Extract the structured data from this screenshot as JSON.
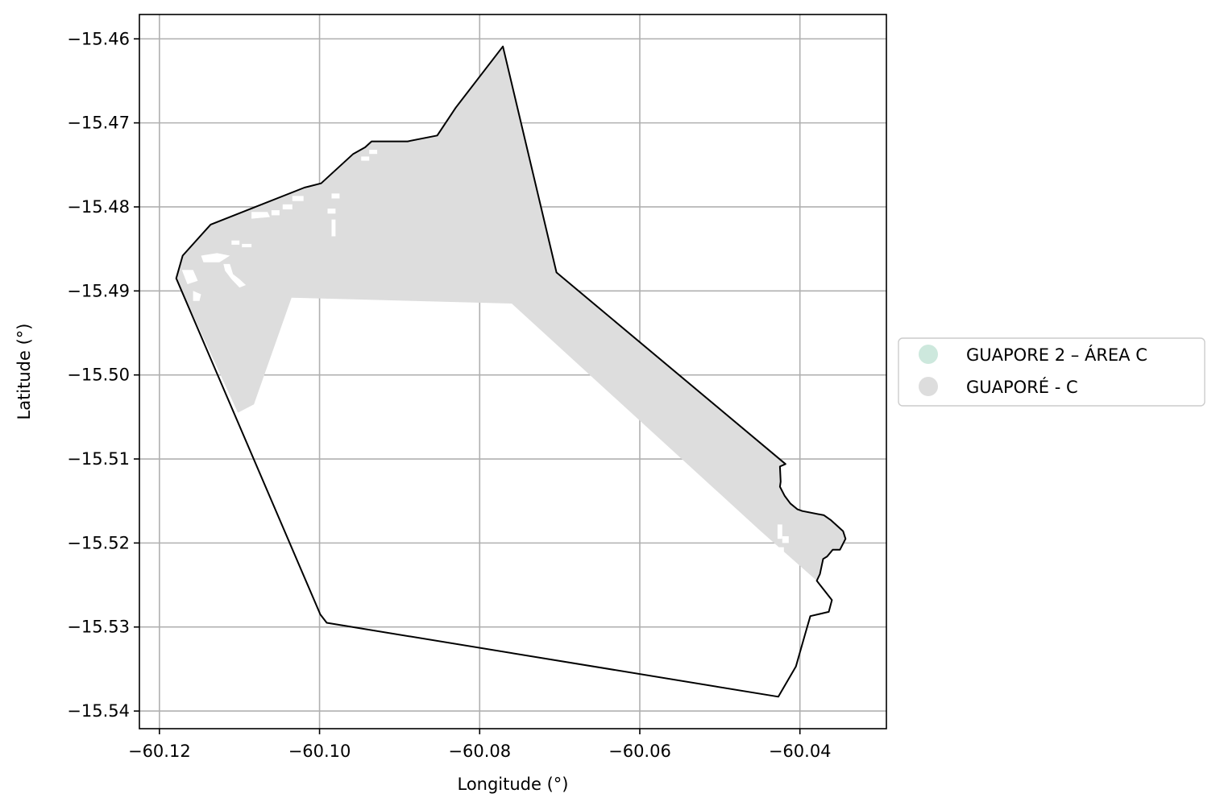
{
  "chart_data": {
    "type": "map",
    "xlabel": "Longitude (°)",
    "ylabel": "Latitude (°)",
    "xlim": [
      -60.1225,
      -60.0292
    ],
    "ylim": [
      -15.5421,
      -15.4571
    ],
    "grid": true,
    "x_ticks": [
      {
        "value": -60.12,
        "label": "−60.12"
      },
      {
        "value": -60.1,
        "label": "−60.10"
      },
      {
        "value": -60.08,
        "label": "−60.08"
      },
      {
        "value": -60.06,
        "label": "−60.06"
      },
      {
        "value": -60.04,
        "label": "−60.04"
      }
    ],
    "y_ticks": [
      {
        "value": -15.46,
        "label": "−15.46"
      },
      {
        "value": -15.47,
        "label": "−15.47"
      },
      {
        "value": -15.48,
        "label": "−15.48"
      },
      {
        "value": -15.49,
        "label": "−15.49"
      },
      {
        "value": -15.5,
        "label": "−15.50"
      },
      {
        "value": -15.51,
        "label": "−15.51"
      },
      {
        "value": -15.52,
        "label": "−15.52"
      },
      {
        "value": -15.53,
        "label": "−15.53"
      },
      {
        "value": -15.54,
        "label": "−15.54"
      }
    ],
    "legend": {
      "placement": "right",
      "entries": [
        {
          "label": "GUAPORE 2 – ÁREA C",
          "color": "#cde8dd"
        },
        {
          "label": "GUAPORÉ - C",
          "color": "#dddddd"
        }
      ]
    },
    "outline_polygon": [
      [
        -60.1171,
        -15.4858
      ],
      [
        -60.1136,
        -15.4821
      ],
      [
        -60.1019,
        -15.4777
      ],
      [
        -60.0998,
        -15.4772
      ],
      [
        -60.0958,
        -15.4737
      ],
      [
        -60.0943,
        -15.4729
      ],
      [
        -60.0935,
        -15.4722
      ],
      [
        -60.089,
        -15.4722
      ],
      [
        -60.0853,
        -15.4715
      ],
      [
        -60.083,
        -15.4682
      ],
      [
        -60.0771,
        -15.4609
      ],
      [
        -60.0704,
        -15.4878
      ],
      [
        -60.0418,
        -15.5106
      ],
      [
        -60.0425,
        -15.5109
      ],
      [
        -60.0424,
        -15.5127
      ],
      [
        -60.0425,
        -15.5133
      ],
      [
        -60.0419,
        -15.5144
      ],
      [
        -60.0412,
        -15.5153
      ],
      [
        -60.0403,
        -15.516
      ],
      [
        -60.0397,
        -15.5162
      ],
      [
        -60.037,
        -15.5167
      ],
      [
        -60.0361,
        -15.5173
      ],
      [
        -60.0346,
        -15.5186
      ],
      [
        -60.0343,
        -15.5195
      ],
      [
        -60.035,
        -15.5208
      ],
      [
        -60.0359,
        -15.5208
      ],
      [
        -60.0366,
        -15.5216
      ],
      [
        -60.0371,
        -15.5219
      ],
      [
        -60.0375,
        -15.5237
      ],
      [
        -60.0379,
        -15.5245
      ],
      [
        -60.036,
        -15.5268
      ],
      [
        -60.0364,
        -15.5282
      ],
      [
        -60.0387,
        -15.5287
      ],
      [
        -60.0393,
        -15.5307
      ],
      [
        -60.0405,
        -15.5347
      ],
      [
        -60.0427,
        -15.5383
      ],
      [
        -60.0991,
        -15.5295
      ],
      [
        -60.0999,
        -15.5285
      ],
      [
        -60.1179,
        -15.4885
      ]
    ],
    "filled_polygon": [
      [
        -60.1171,
        -15.4858
      ],
      [
        -60.1136,
        -15.4821
      ],
      [
        -60.1019,
        -15.4777
      ],
      [
        -60.0998,
        -15.4772
      ],
      [
        -60.0958,
        -15.4737
      ],
      [
        -60.0943,
        -15.4729
      ],
      [
        -60.0935,
        -15.4722
      ],
      [
        -60.089,
        -15.4722
      ],
      [
        -60.0853,
        -15.4715
      ],
      [
        -60.083,
        -15.4682
      ],
      [
        -60.0771,
        -15.4609
      ],
      [
        -60.0704,
        -15.4878
      ],
      [
        -60.0418,
        -15.5106
      ],
      [
        -60.0425,
        -15.5109
      ],
      [
        -60.0424,
        -15.5127
      ],
      [
        -60.0425,
        -15.5133
      ],
      [
        -60.0419,
        -15.5144
      ],
      [
        -60.0412,
        -15.5153
      ],
      [
        -60.0403,
        -15.516
      ],
      [
        -60.0397,
        -15.5162
      ],
      [
        -60.037,
        -15.5167
      ],
      [
        -60.0361,
        -15.5173
      ],
      [
        -60.0346,
        -15.5186
      ],
      [
        -60.0343,
        -15.5195
      ],
      [
        -60.035,
        -15.5208
      ],
      [
        -60.0359,
        -15.5208
      ],
      [
        -60.0366,
        -15.5216
      ],
      [
        -60.0371,
        -15.5219
      ],
      [
        -60.0375,
        -15.5237
      ],
      [
        -60.0379,
        -15.5245
      ],
      [
        -60.045,
        -15.5185
      ],
      [
        -60.076,
        -15.4915
      ],
      [
        -60.1035,
        -15.4908
      ],
      [
        -60.1082,
        -15.5035
      ],
      [
        -60.1102,
        -15.5045
      ],
      [
        -60.1179,
        -15.4885
      ]
    ],
    "gaps": [
      [
        [
          -60.0975,
          -15.4784
        ],
        [
          -60.0985,
          -15.4784
        ],
        [
          -60.0985,
          -15.479
        ],
        [
          -60.0975,
          -15.479
        ]
      ],
      [
        [
          -60.098,
          -15.4802
        ],
        [
          -60.099,
          -15.4802
        ],
        [
          -60.099,
          -15.4808
        ],
        [
          -60.098,
          -15.4808
        ]
      ],
      [
        [
          -60.098,
          -15.4815
        ],
        [
          -60.0985,
          -15.4815
        ],
        [
          -60.0985,
          -15.4835
        ],
        [
          -60.098,
          -15.4835
        ]
      ],
      [
        [
          -60.1085,
          -15.4806
        ],
        [
          -60.1065,
          -15.4806
        ],
        [
          -60.1062,
          -15.4812
        ],
        [
          -60.1085,
          -15.4814
        ]
      ],
      [
        [
          -60.106,
          -15.4804
        ],
        [
          -60.105,
          -15.4804
        ],
        [
          -60.105,
          -15.481
        ],
        [
          -60.106,
          -15.481
        ]
      ],
      [
        [
          -60.1046,
          -15.4797
        ],
        [
          -60.1034,
          -15.4797
        ],
        [
          -60.1034,
          -15.4803
        ],
        [
          -60.1046,
          -15.4803
        ]
      ],
      [
        [
          -60.1034,
          -15.4787
        ],
        [
          -60.102,
          -15.4787
        ],
        [
          -60.102,
          -15.4793
        ],
        [
          -60.1034,
          -15.4793
        ]
      ],
      [
        [
          -60.111,
          -15.484
        ],
        [
          -60.11,
          -15.484
        ],
        [
          -60.11,
          -15.4845
        ],
        [
          -60.111,
          -15.4845
        ]
      ],
      [
        [
          -60.1097,
          -15.4844
        ],
        [
          -60.1085,
          -15.4844
        ],
        [
          -60.1085,
          -15.4848
        ],
        [
          -60.1097,
          -15.4848
        ]
      ],
      [
        [
          -60.1148,
          -15.4858
        ],
        [
          -60.1128,
          -15.4855
        ],
        [
          -60.1112,
          -15.4858
        ],
        [
          -60.1125,
          -15.4866
        ],
        [
          -60.1145,
          -15.4866
        ]
      ],
      [
        [
          -60.112,
          -15.4868
        ],
        [
          -60.1112,
          -15.4868
        ],
        [
          -60.1108,
          -15.488
        ],
        [
          -60.11,
          -15.4886
        ],
        [
          -60.1092,
          -15.4893
        ],
        [
          -60.11,
          -15.4896
        ],
        [
          -60.111,
          -15.4886
        ],
        [
          -60.1118,
          -15.4876
        ]
      ],
      [
        [
          -60.1172,
          -15.4875
        ],
        [
          -60.1158,
          -15.4875
        ],
        [
          -60.1152,
          -15.4888
        ],
        [
          -60.1165,
          -15.4892
        ]
      ],
      [
        [
          -60.1158,
          -15.49
        ],
        [
          -60.1148,
          -15.4904
        ],
        [
          -60.115,
          -15.4912
        ],
        [
          -60.1158,
          -15.4912
        ]
      ],
      [
        [
          -60.0948,
          -15.474
        ],
        [
          -60.0938,
          -15.474
        ],
        [
          -60.0938,
          -15.4745
        ],
        [
          -60.0948,
          -15.4745
        ]
      ],
      [
        [
          -60.0938,
          -15.4732
        ],
        [
          -60.0928,
          -15.4732
        ],
        [
          -60.0928,
          -15.4737
        ],
        [
          -60.0938,
          -15.4737
        ]
      ],
      [
        [
          -60.0428,
          -15.5178
        ],
        [
          -60.0422,
          -15.5178
        ],
        [
          -60.0422,
          -15.5195
        ],
        [
          -60.0428,
          -15.5195
        ]
      ],
      [
        [
          -60.0422,
          -15.5192
        ],
        [
          -60.0414,
          -15.5192
        ],
        [
          -60.0414,
          -15.52
        ],
        [
          -60.0422,
          -15.52
        ]
      ],
      [
        [
          -60.043,
          -15.5205
        ],
        [
          -60.042,
          -15.5205
        ],
        [
          -60.042,
          -15.5212
        ],
        [
          -60.043,
          -15.5212
        ]
      ]
    ]
  }
}
